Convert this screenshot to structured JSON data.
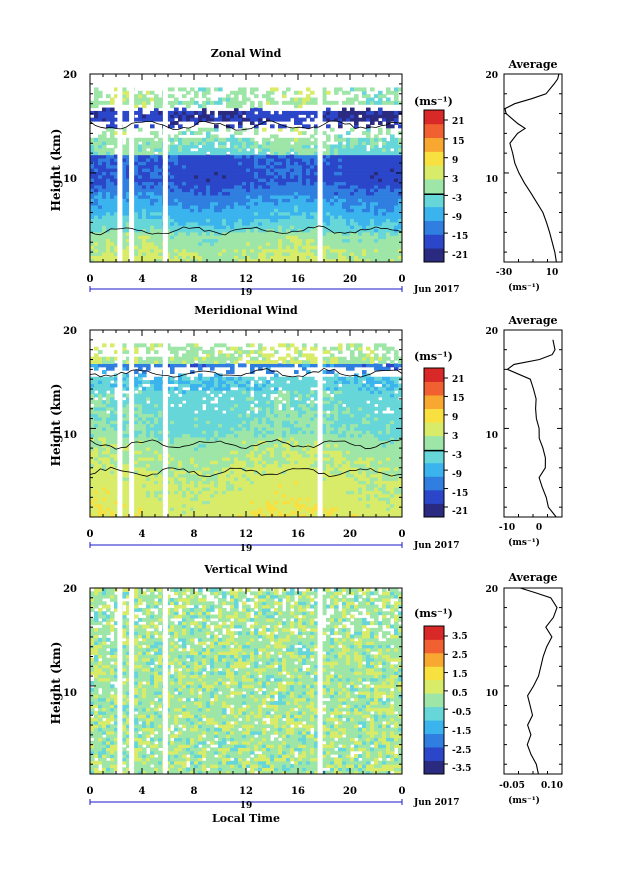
{
  "chart_data": [
    {
      "type": "heatmap",
      "title": "Zonal Wind",
      "ylabel": "Height (km)",
      "xlabel": "",
      "x_ticks": [
        "0",
        "4",
        "8",
        "12",
        "16",
        "20",
        "0"
      ],
      "xlim": [
        0,
        24
      ],
      "y_ticks": [
        "20",
        "10"
      ],
      "ylim": [
        1,
        20
      ],
      "date_label": "19",
      "month_label": "Jun 2017",
      "colorbar": {
        "unit": "(ms⁻¹)",
        "ticks": [
          "21",
          "15",
          "9",
          "3",
          "-3",
          "-9",
          "-15",
          "-21"
        ],
        "range": [
          -24,
          24
        ],
        "contour_at": 0
      },
      "gaps_local_time": [
        2.3,
        3.2,
        5.8,
        17.7
      ],
      "profile": {
        "title": "Average",
        "x_ticks": [
          "-30",
          "10"
        ],
        "x_range": [
          -30,
          12
        ],
        "y_ticks": [
          "20",
          "10"
        ],
        "xlabel": "(ms⁻¹)",
        "points": [
          [
            8,
            1
          ],
          [
            7,
            2
          ],
          [
            5,
            3
          ],
          [
            3,
            4
          ],
          [
            1,
            5
          ],
          [
            -2,
            6
          ],
          [
            -6,
            7
          ],
          [
            -11,
            8
          ],
          [
            -15,
            9
          ],
          [
            -19,
            10
          ],
          [
            -22,
            11
          ],
          [
            -24,
            12
          ],
          [
            -26,
            13
          ],
          [
            -20,
            14
          ],
          [
            -15,
            14.5
          ],
          [
            -20,
            15
          ],
          [
            -28,
            16
          ],
          [
            -29,
            16.5
          ],
          [
            -22,
            17
          ],
          [
            -10,
            17.5
          ],
          [
            0,
            18
          ],
          [
            6,
            19
          ],
          [
            9,
            19.5
          ],
          [
            10,
            20
          ]
        ]
      }
    },
    {
      "type": "heatmap",
      "title": "Meridional Wind",
      "ylabel": "Height (km)",
      "xlabel": "",
      "x_ticks": [
        "0",
        "4",
        "8",
        "12",
        "16",
        "20",
        "0"
      ],
      "xlim": [
        0,
        24
      ],
      "y_ticks": [
        "20",
        "10"
      ],
      "ylim": [
        1,
        20
      ],
      "date_label": "19",
      "month_label": "Jun 2017",
      "colorbar": {
        "unit": "(ms⁻¹)",
        "ticks": [
          "21",
          "15",
          "9",
          "3",
          "-3",
          "-9",
          "-15",
          "-21"
        ],
        "range": [
          -24,
          24
        ],
        "contour_at": 0
      },
      "gaps_local_time": [
        2.3,
        3.2,
        5.8,
        17.7
      ],
      "profile": {
        "title": "Average",
        "x_ticks": [
          "-10",
          "0"
        ],
        "x_range": [
          -12,
          6
        ],
        "y_ticks": [
          "20",
          "10"
        ],
        "xlabel": "(ms⁻¹)",
        "points": [
          [
            4,
            1
          ],
          [
            2,
            2
          ],
          [
            1,
            3
          ],
          [
            0,
            4
          ],
          [
            -1,
            5
          ],
          [
            1,
            6
          ],
          [
            1,
            7
          ],
          [
            0,
            8
          ],
          [
            -1,
            9
          ],
          [
            -1,
            10
          ],
          [
            -2,
            11
          ],
          [
            -2,
            12
          ],
          [
            -2,
            13
          ],
          [
            -3,
            14
          ],
          [
            -4,
            15
          ],
          [
            -11,
            16
          ],
          [
            -9,
            16.5
          ],
          [
            -1,
            17
          ],
          [
            3,
            17.5
          ],
          [
            4,
            18
          ],
          [
            3,
            19
          ]
        ]
      }
    },
    {
      "type": "heatmap",
      "title": "Vertical Wind",
      "ylabel": "Height (km)",
      "xlabel": "Local Time",
      "x_ticks": [
        "0",
        "4",
        "8",
        "12",
        "16",
        "20",
        "0"
      ],
      "xlim": [
        0,
        24
      ],
      "y_ticks": [
        "20",
        "10"
      ],
      "ylim": [
        1,
        20
      ],
      "date_label": "19",
      "month_label": "Jun 2017",
      "colorbar": {
        "unit": "(ms⁻¹)",
        "ticks": [
          "3.5",
          "2.5",
          "1.5",
          "0.5",
          "-0.5",
          "-1.5",
          "-2.5",
          "-3.5"
        ],
        "range": [
          -4,
          4
        ],
        "contour_at": null
      },
      "gaps_local_time": [
        2.3,
        3.2,
        5.8,
        17.7
      ],
      "profile": {
        "title": "Average",
        "x_ticks": [
          "-0.05",
          "0.10"
        ],
        "x_range": [
          -0.1,
          0.12
        ],
        "y_ticks": [
          "20",
          "10"
        ],
        "xlabel": "(ms⁻¹)",
        "points": [
          [
            0.03,
            1
          ],
          [
            0.02,
            2
          ],
          [
            0.0,
            3
          ],
          [
            -0.01,
            4
          ],
          [
            0.0,
            5
          ],
          [
            -0.01,
            6
          ],
          [
            0.01,
            7
          ],
          [
            0.0,
            8
          ],
          [
            -0.01,
            9
          ],
          [
            0.01,
            10
          ],
          [
            0.03,
            11
          ],
          [
            0.04,
            12
          ],
          [
            0.05,
            13
          ],
          [
            0.06,
            14
          ],
          [
            0.08,
            15
          ],
          [
            0.06,
            16
          ],
          [
            0.09,
            17
          ],
          [
            0.1,
            18
          ],
          [
            0.08,
            19
          ],
          [
            0.02,
            19.5
          ],
          [
            -0.04,
            20
          ]
        ]
      }
    }
  ],
  "colors": {
    "scale": [
      "#2a2a80",
      "#2b46c8",
      "#2f7ee0",
      "#3bb4ee",
      "#66d6d8",
      "#9ee6a8",
      "#d8ec6a",
      "#f8e040",
      "#f8a830",
      "#f06030",
      "#d82828"
    ],
    "gap": "#ffffff",
    "axis": "#000000",
    "bracket": "#1a1ac8"
  }
}
